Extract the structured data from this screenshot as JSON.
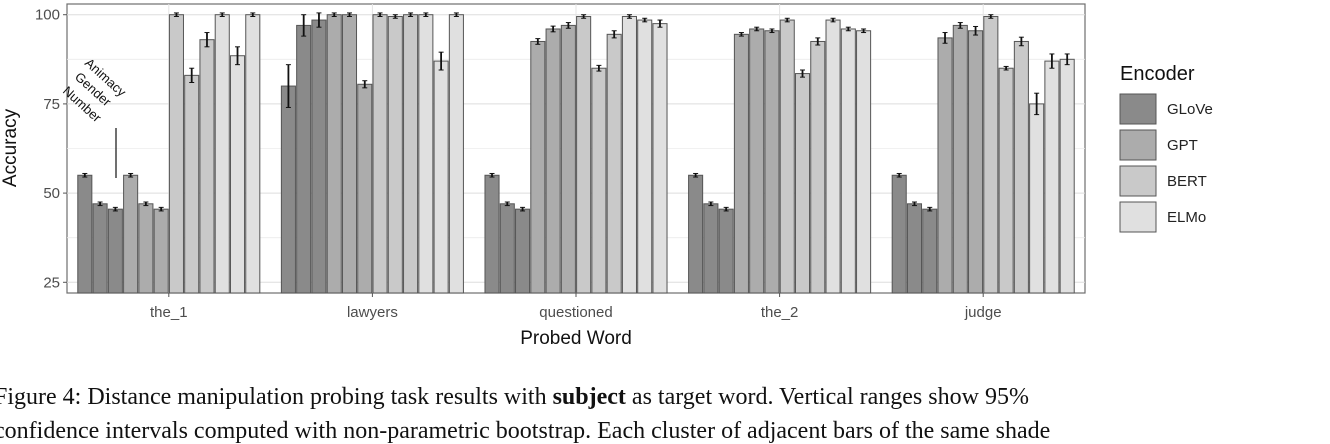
{
  "chart_data": {
    "type": "bar",
    "xlabel": "Probed Word",
    "ylabel": "Accuracy",
    "ylim": [
      22,
      103
    ],
    "yticks": [
      25,
      50,
      75,
      100
    ],
    "grid": true,
    "categories": [
      "the_1",
      "lawyers",
      "questioned",
      "the_2",
      "judge"
    ],
    "subtasks": [
      "Animacy",
      "Gender",
      "Number"
    ],
    "legend": {
      "title": "Encoder",
      "position": "right"
    },
    "series": [
      {
        "name": "GLoVe",
        "color": "#8a8a8a",
        "values": [
          [
            55,
            47,
            45.5
          ],
          [
            80,
            97,
            98.5
          ],
          [
            55,
            47,
            45.5
          ],
          [
            55,
            47,
            45.5
          ],
          [
            55,
            47,
            45.5
          ]
        ],
        "errors": [
          [
            0,
            0,
            0
          ],
          [
            6,
            3,
            2
          ],
          [
            0,
            0,
            0
          ],
          [
            0,
            0,
            0
          ],
          [
            0,
            0,
            0
          ]
        ]
      },
      {
        "name": "GPT",
        "color": "#acacac",
        "values": [
          [
            55,
            47,
            45.5
          ],
          [
            100,
            100,
            80.5
          ],
          [
            92.5,
            96,
            97
          ],
          [
            94.5,
            96,
            95.5
          ],
          [
            93.5,
            97,
            95.5
          ]
        ],
        "errors": [
          [
            0,
            0,
            0
          ],
          [
            0,
            0,
            1
          ],
          [
            0.8,
            0.8,
            0.8
          ],
          [
            0.5,
            0.5,
            0.5
          ],
          [
            1.5,
            0.8,
            1.2
          ]
        ]
      },
      {
        "name": "BERT",
        "color": "#c9c9c9",
        "values": [
          [
            100,
            83,
            93
          ],
          [
            100,
            99.5,
            100
          ],
          [
            99.5,
            85,
            94.5
          ],
          [
            98.5,
            83.5,
            92.5
          ],
          [
            99.5,
            85,
            92.5
          ]
        ],
        "errors": [
          [
            0,
            2,
            2
          ],
          [
            0,
            0,
            0
          ],
          [
            0,
            0.8,
            1
          ],
          [
            0,
            1,
            1
          ],
          [
            0,
            0,
            1.2
          ]
        ]
      },
      {
        "name": "ELMo",
        "color": "#e0e0e0",
        "values": [
          [
            100,
            88.5,
            100
          ],
          [
            100,
            87,
            100
          ],
          [
            99.5,
            98.5,
            97.5
          ],
          [
            98.5,
            96,
            95.5
          ],
          [
            75,
            87,
            87.5
          ]
        ],
        "errors": [
          [
            0,
            2.5,
            0
          ],
          [
            0,
            2.5,
            0
          ],
          [
            0.5,
            0.5,
            1
          ],
          [
            0.5,
            0.5,
            0.5
          ],
          [
            3,
            2,
            1.5
          ]
        ]
      }
    ]
  },
  "caption": {
    "line1_prefix": "Figure 4:  Distance manipulation probing task results with ",
    "line1_bold": "subject",
    "line1_suffix": " as target word.  Vertical ranges show 95%",
    "line2": "confidence intervals computed with non-parametric bootstrap.  Each cluster of adjacent bars of the same shade"
  }
}
